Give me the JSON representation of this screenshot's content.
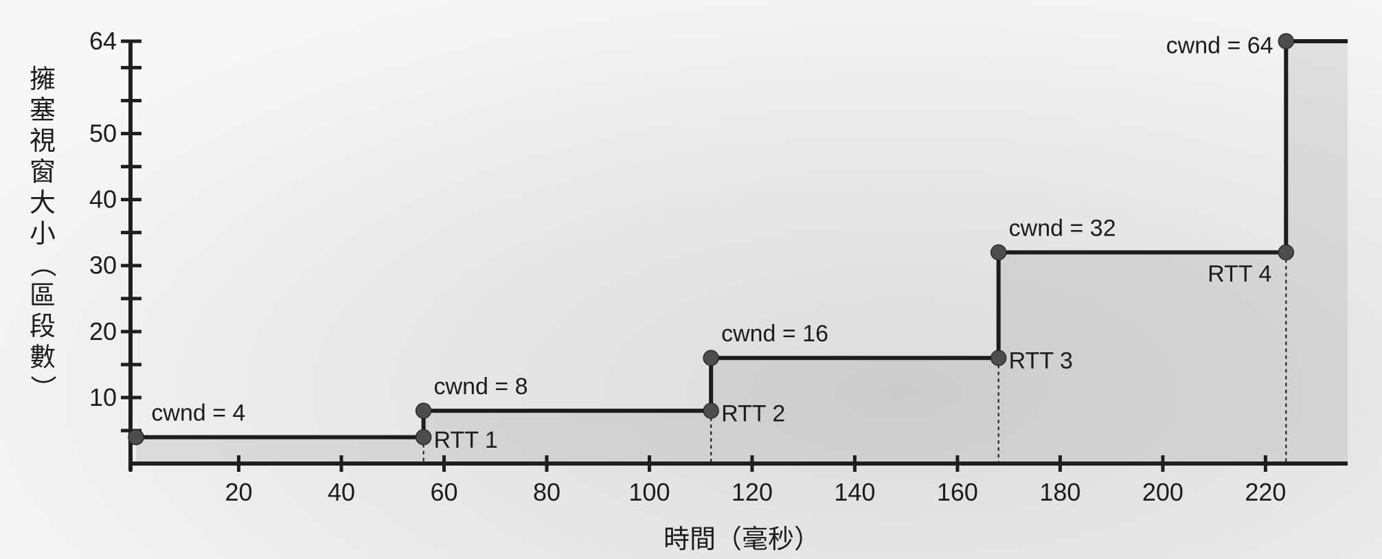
{
  "chart_data": {
    "type": "line",
    "xlabel": "時間（毫秒）",
    "ylabel_chars": [
      "擁",
      "塞",
      "視",
      "窗",
      "大",
      "小",
      "（",
      "區",
      "段",
      "數",
      "）"
    ],
    "xlim": [
      0,
      236
    ],
    "ylim": [
      0,
      64
    ],
    "x_ticks": [
      20,
      40,
      60,
      80,
      100,
      120,
      140,
      160,
      180,
      200,
      220
    ],
    "y_ticks": [
      10,
      20,
      30,
      40,
      50,
      64
    ],
    "y_minor_ticks": [
      5,
      15,
      25,
      35,
      45,
      55,
      60
    ],
    "grid": false,
    "series": [
      {
        "points": [
          {
            "x": 0,
            "y": 4
          },
          {
            "x": 56,
            "y": 4
          },
          {
            "x": 56,
            "y": 8
          },
          {
            "x": 112,
            "y": 8
          },
          {
            "x": 112,
            "y": 16
          },
          {
            "x": 168,
            "y": 16
          },
          {
            "x": 168,
            "y": 32
          },
          {
            "x": 224,
            "y": 32
          },
          {
            "x": 224,
            "y": 64
          },
          {
            "x": 236,
            "y": 64
          }
        ]
      }
    ],
    "markers": [
      {
        "x": 0,
        "y": 4
      },
      {
        "x": 56,
        "y": 4
      },
      {
        "x": 56,
        "y": 8
      },
      {
        "x": 112,
        "y": 8
      },
      {
        "x": 112,
        "y": 16
      },
      {
        "x": 168,
        "y": 16
      },
      {
        "x": 168,
        "y": 32
      },
      {
        "x": 224,
        "y": 32
      },
      {
        "x": 224,
        "y": 64
      }
    ],
    "rtt_drops": [
      56,
      112,
      168,
      224
    ],
    "annotations": [
      {
        "text": "cwnd = 4",
        "x": 3,
        "y": 6.5,
        "anchor": "start"
      },
      {
        "text": "cwnd = 8",
        "x": 58,
        "y": 10.5,
        "anchor": "start"
      },
      {
        "text": "cwnd = 16",
        "x": 114,
        "y": 18.5,
        "anchor": "start"
      },
      {
        "text": "cwnd = 32",
        "x": 170,
        "y": 34.5,
        "anchor": "start"
      },
      {
        "text": "cwnd = 64",
        "x": 221.5,
        "y": 62.2,
        "anchor": "end"
      },
      {
        "text": "RTT 1",
        "x": 58,
        "y": 2.4,
        "anchor": "start"
      },
      {
        "text": "RTT 2",
        "x": 114,
        "y": 6.4,
        "anchor": "start"
      },
      {
        "text": "RTT 3",
        "x": 170,
        "y": 14.4,
        "anchor": "start"
      },
      {
        "text": "RTT 4",
        "x": 221.2,
        "y": 27.6,
        "anchor": "end"
      }
    ]
  }
}
